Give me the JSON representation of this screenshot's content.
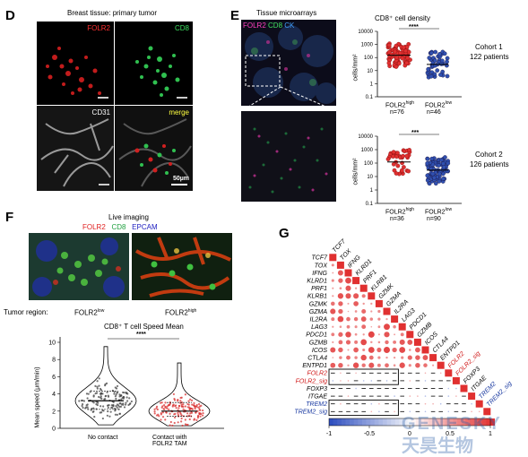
{
  "panels": {
    "D": {
      "letter": "D",
      "title": "Breast tissue: primary tumor",
      "tiles": [
        {
          "label": "FOLR2",
          "color": "#ff3030"
        },
        {
          "label": "CD8",
          "color": "#3ce060"
        },
        {
          "label": "CD31",
          "color": "#ffffff"
        },
        {
          "label": "merge",
          "color": "#ffff40"
        }
      ],
      "scalebar": "50µm"
    },
    "E": {
      "letter": "E",
      "title": "Tissue microarrays",
      "channels": [
        {
          "label": "FOLR2",
          "color": "#ff40c0"
        },
        {
          "label": "CD8",
          "color": "#40e060"
        },
        {
          "label": "CK",
          "color": "#40a0ff"
        }
      ],
      "density_title": "CD8⁺ cell density",
      "ylabel": "cells/mm²",
      "cohorts": [
        {
          "name": "Cohort 1",
          "patients": "122 patients",
          "sig": "****",
          "groups": [
            {
              "label": "FOLR2",
              "sup": "high",
              "n": "n=76"
            },
            {
              "label": "FOLR2",
              "sup": "low",
              "n": "n=46"
            }
          ]
        },
        {
          "name": "Cohort 2",
          "patients": "126 patients",
          "sig": "***",
          "groups": [
            {
              "label": "FOLR2",
              "sup": "high",
              "n": "n=36"
            },
            {
              "label": "FOLR2",
              "sup": "low",
              "n": "n=90"
            }
          ]
        }
      ]
    },
    "F": {
      "letter": "F",
      "title": "Live imaging",
      "channels": [
        {
          "label": "FOLR2",
          "color": "#e02020"
        },
        {
          "label": "CD8",
          "color": "#20a040"
        },
        {
          "label": "EPCAM",
          "color": "#2020c0"
        }
      ],
      "region_label": "Tumor region:",
      "regions": [
        {
          "label": "FOLR2",
          "sup": "low"
        },
        {
          "label": "FOLR2",
          "sup": "high"
        }
      ],
      "chart_title": "CD8⁺ T cell Speed Mean",
      "sig": "****",
      "ylabel": "Mean speed (μm/min)",
      "yticks": [
        "0",
        "2",
        "4",
        "6",
        "8",
        "10"
      ],
      "xcats": [
        "No contact",
        "Contact with\nFOLR2 TAM"
      ]
    },
    "G": {
      "letter": "G",
      "genes": [
        {
          "name": "TCF7",
          "color": "#000"
        },
        {
          "name": "TOX",
          "color": "#000"
        },
        {
          "name": "IFNG",
          "color": "#000"
        },
        {
          "name": "KLRD1",
          "color": "#000"
        },
        {
          "name": "PRF1",
          "color": "#000"
        },
        {
          "name": "KLRB1",
          "color": "#000"
        },
        {
          "name": "GZMK",
          "color": "#000"
        },
        {
          "name": "GZMA",
          "color": "#000"
        },
        {
          "name": "IL2RA",
          "color": "#000"
        },
        {
          "name": "LAG3",
          "color": "#000"
        },
        {
          "name": "PDCD1",
          "color": "#000"
        },
        {
          "name": "GZMB",
          "color": "#000"
        },
        {
          "name": "ICOS",
          "color": "#000"
        },
        {
          "name": "CTLA4",
          "color": "#000"
        },
        {
          "name": "ENTPD1",
          "color": "#000"
        },
        {
          "name": "FOLR2",
          "color": "#d01818"
        },
        {
          "name": "FOLR2_sig",
          "color": "#d01818"
        },
        {
          "name": "FOXP3",
          "color": "#000"
        },
        {
          "name": "ITGAE",
          "color": "#000"
        },
        {
          "name": "TREM2",
          "color": "#1838a0"
        },
        {
          "name": "TREM2_sig",
          "color": "#1838a0"
        }
      ],
      "colorbar_ticks": [
        "-1",
        "-0.5",
        "0",
        "0.5",
        "1"
      ]
    }
  },
  "watermark": {
    "line1": "GENESKY",
    "line2": "天昊生物"
  },
  "chart_data": [
    {
      "type": "scatter",
      "title": "CD8⁺ cell density",
      "subtitle": "Cohort 1 122 patients",
      "ylabel": "cells/mm²",
      "yscale": "log",
      "ylim": [
        0.1,
        10000
      ],
      "categories": [
        "FOLR2high",
        "FOLR2low"
      ],
      "series": [
        {
          "name": "FOLR2high",
          "n": 76,
          "median": 150
        },
        {
          "name": "FOLR2low",
          "n": 46,
          "median": 30
        }
      ],
      "sig": "****"
    },
    {
      "type": "scatter",
      "title": "",
      "subtitle": "Cohort 2 126 patients",
      "ylabel": "cells/mm²",
      "yscale": "log",
      "ylim": [
        0.1,
        10000
      ],
      "categories": [
        "FOLR2high",
        "FOLR2low"
      ],
      "series": [
        {
          "name": "FOLR2high",
          "n": 36,
          "median": 120
        },
        {
          "name": "FOLR2low",
          "n": 90,
          "median": 30
        }
      ],
      "sig": "***"
    },
    {
      "type": "violin",
      "title": "CD8⁺ T cell Speed Mean",
      "ylabel": "Mean speed (μm/min)",
      "ylim": [
        0,
        10
      ],
      "categories": [
        "No contact",
        "Contact with FOLR2 TAM"
      ],
      "series": [
        {
          "name": "No contact",
          "median": 3.2,
          "q1": 2.2,
          "q3": 4.3,
          "min": 0.4,
          "max": 9.5
        },
        {
          "name": "Contact with FOLR2 TAM",
          "median": 2.0,
          "q1": 1.4,
          "q3": 3.0,
          "min": 0.3,
          "max": 7.6
        }
      ],
      "sig": "****"
    }
  ]
}
